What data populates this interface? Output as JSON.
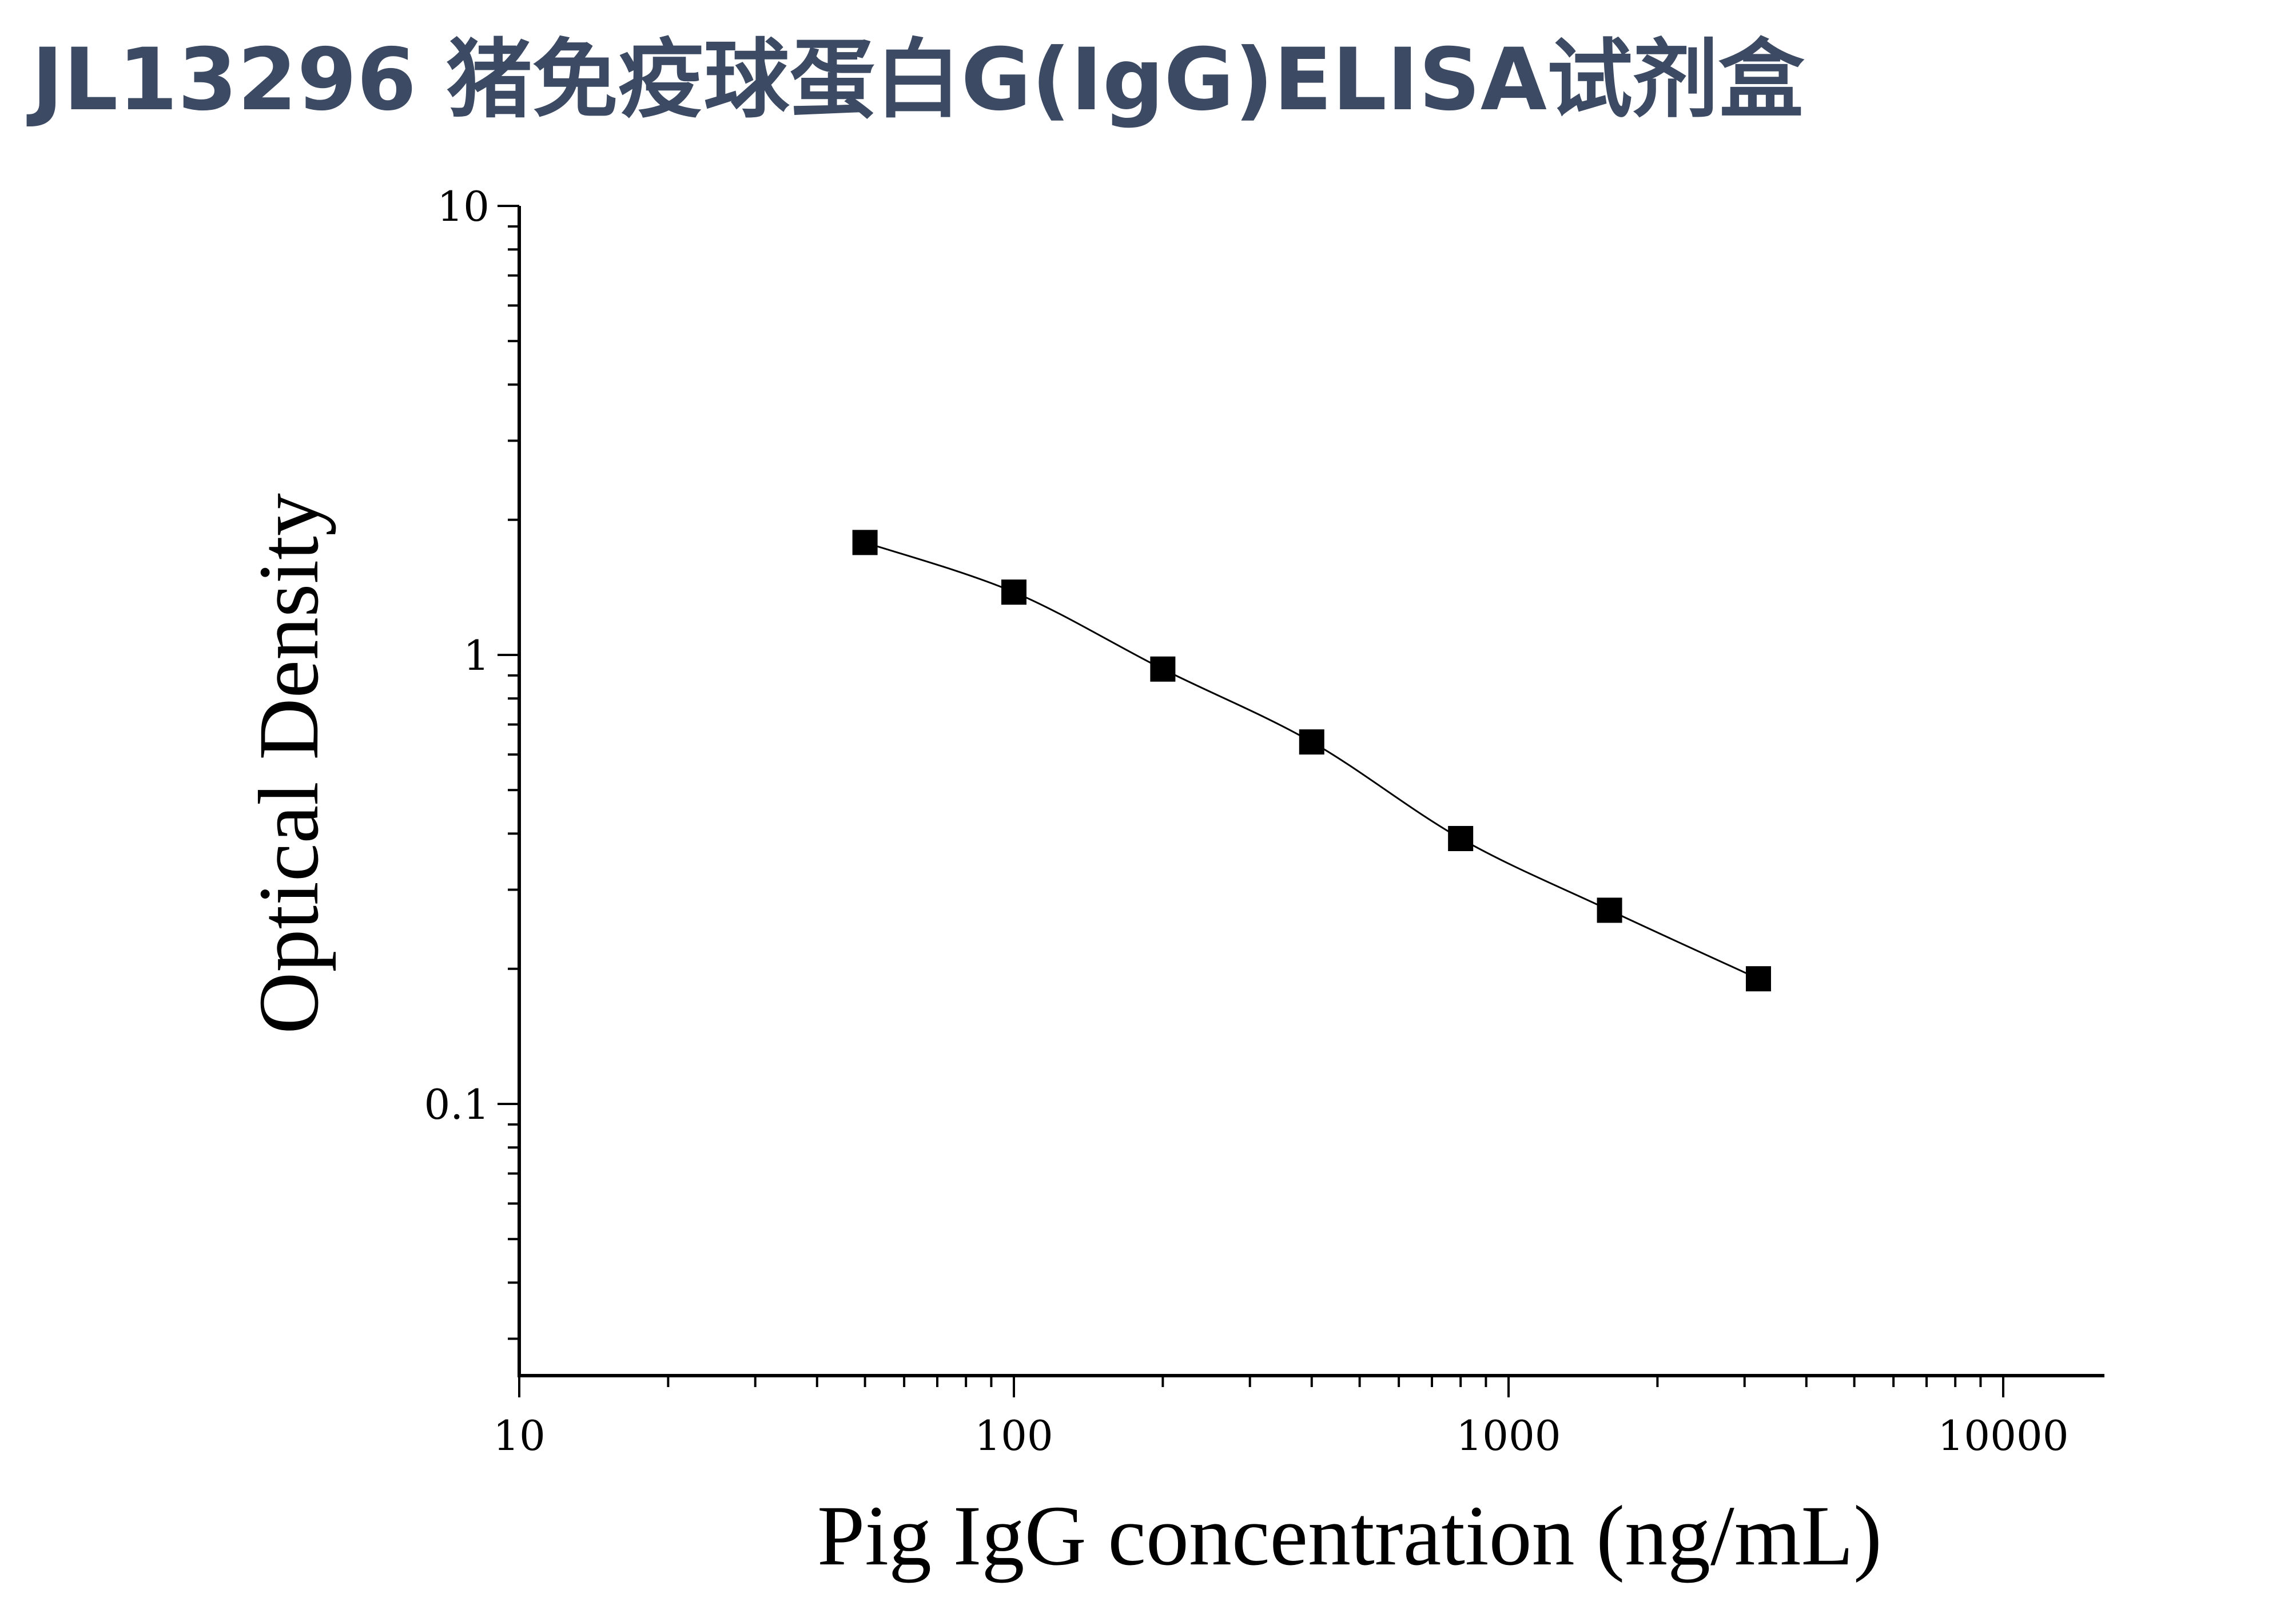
{
  "page": {
    "title": "JL13296 猪免疫球蛋白G(IgG)ELISA试剂盒"
  },
  "chart_data": {
    "type": "scatter",
    "title": "",
    "xlabel": "Pig IgG concentration (ng/mL)",
    "ylabel": "Optical Density",
    "x_scale": "log",
    "y_scale": "log",
    "xlim": [
      10,
      16000
    ],
    "ylim": [
      0.025,
      10
    ],
    "x_ticks": [
      {
        "value": 10,
        "label": "10"
      },
      {
        "value": 100,
        "label": "100"
      },
      {
        "value": 1000,
        "label": "1000"
      },
      {
        "value": 10000,
        "label": "10000"
      }
    ],
    "y_ticks": [
      {
        "value": 0.1,
        "label": "0.1"
      },
      {
        "value": 1,
        "label": "1"
      },
      {
        "value": 10,
        "label": "10"
      }
    ],
    "grid": false,
    "legend": "none",
    "marker": "square",
    "color": "#000000",
    "series": [
      {
        "x": [
          50,
          100,
          200,
          400,
          800,
          1600,
          3200
        ],
        "y": [
          1.78,
          1.38,
          0.93,
          0.64,
          0.39,
          0.27,
          0.19
        ]
      }
    ],
    "fit_curve": true
  }
}
